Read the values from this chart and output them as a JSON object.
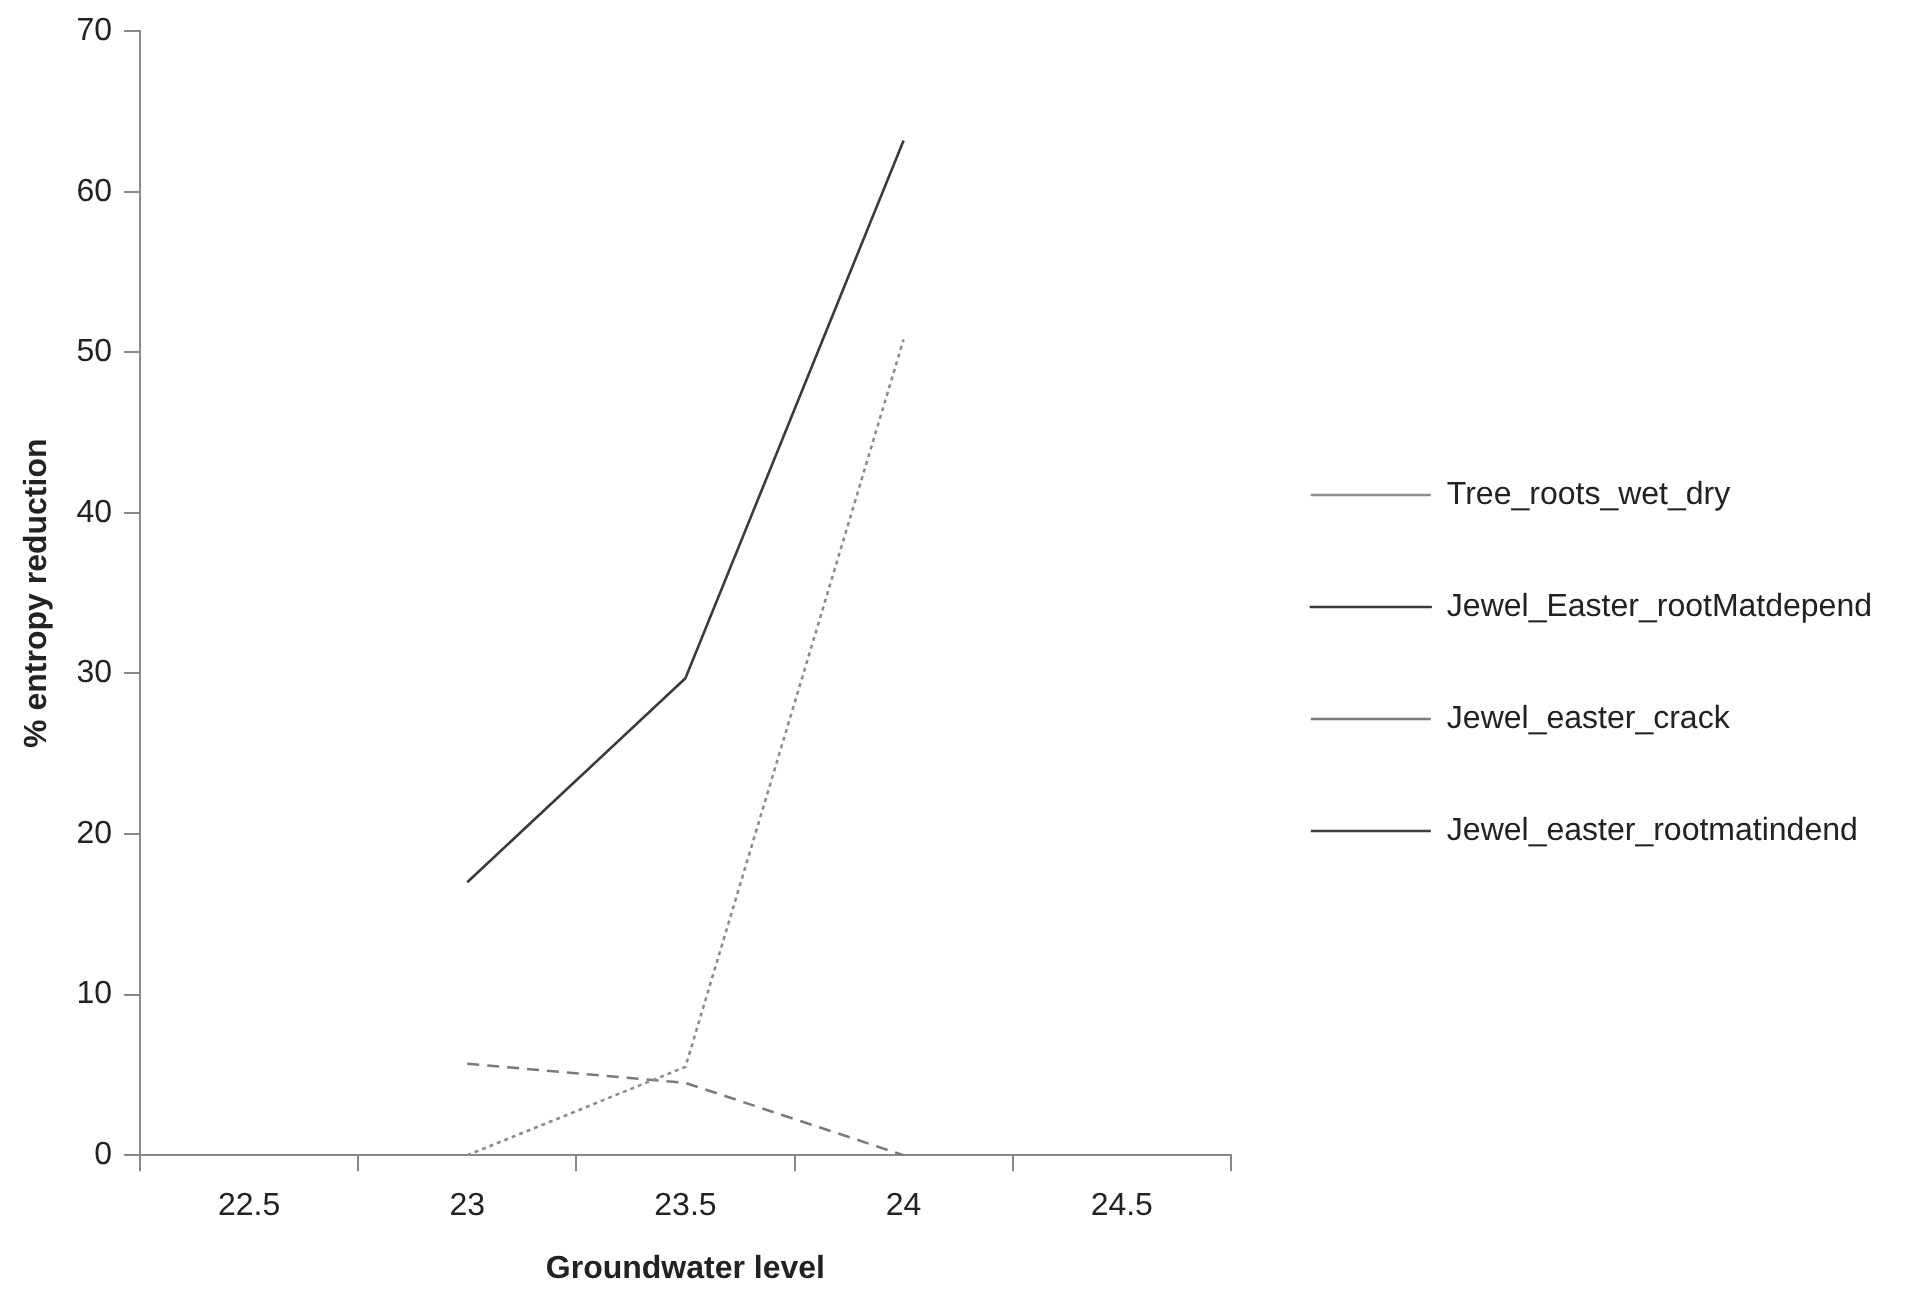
{
  "chart_data": {
    "type": "line",
    "xlabel": "Groundwater level",
    "ylabel": "% entropy reduction",
    "categories": [
      "22.5",
      "23",
      "23.5",
      "24",
      "24.5"
    ],
    "series": [
      {
        "name": "Tree_roots_wet_dry",
        "color": "#8c8c8c",
        "line_style": "dotted",
        "values": [
          null,
          0,
          5.5,
          50.8,
          null
        ]
      },
      {
        "name": "Jewel_Easter_rootMatdepend",
        "color": "#3a3a3a",
        "line_style": "solid",
        "values": [
          null,
          17,
          29.7,
          63.2,
          null
        ]
      },
      {
        "name": "Jewel_easter_crack",
        "color": "#7a7a7a",
        "line_style": "dashed",
        "values": [
          null,
          5.7,
          4.5,
          0,
          null
        ]
      },
      {
        "name": "Jewel_easter_rootmatindend",
        "color": "#404040",
        "line_style": "dotted",
        "values": [
          null,
          null,
          null,
          null,
          null
        ]
      }
    ],
    "ylim": [
      0,
      70
    ],
    "yticks": [
      0,
      10,
      20,
      30,
      40,
      50,
      60,
      70
    ],
    "grid": false,
    "legend": "right",
    "marker": "none"
  }
}
